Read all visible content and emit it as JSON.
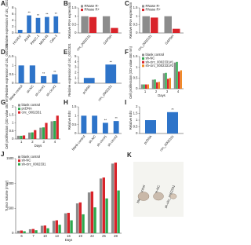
{
  "chart_data": [
    {
      "type": "bar",
      "title": "A",
      "ylabel": "Relative expression of circ_0002331",
      "categories": [
        "HUVEC",
        "A549",
        "PANC-1",
        "MKN-45",
        "Calu-3"
      ],
      "values": [
        1,
        5.6,
        4.8,
        5.1,
        5.3
      ],
      "color": "#2e74c9",
      "significance": [
        null,
        "**",
        "**",
        "**",
        "**"
      ],
      "ylim": [
        0,
        8
      ],
      "yticks": [
        0,
        2,
        4,
        6,
        8
      ]
    },
    {
      "type": "bar",
      "title": "B",
      "ylabel": "Relative RNA expression",
      "categories": [
        "circ_0002331",
        "GAPDH"
      ],
      "series": [
        {
          "name": "RNase R-",
          "color": "#8c8c8c",
          "values": [
            1,
            1
          ]
        },
        {
          "name": "RNase R+",
          "color": "#d9232a",
          "values": [
            0.95,
            0.3
          ]
        }
      ],
      "ylim": [
        0,
        1.5
      ],
      "yticks": [
        0,
        0.5,
        1,
        1.5
      ]
    },
    {
      "type": "bar",
      "title": "C",
      "ylabel": "Relative RNA expression",
      "categories": [
        "circ_0002331",
        "GAPDH"
      ],
      "series": [
        {
          "name": "RNase R-",
          "color": "#8c8c8c",
          "values": [
            1,
            1
          ]
        },
        {
          "name": "RNase R+",
          "color": "#d9232a",
          "values": [
            0.92,
            0.25
          ]
        }
      ],
      "ylim": [
        0,
        1.5
      ],
      "yticks": [
        0,
        0.5,
        1,
        1.5
      ]
    },
    {
      "type": "bar",
      "title": "D",
      "ylabel": "Relative expression of circ_0002331",
      "categories": [
        "blank control",
        "sh-NC",
        "sh-circ#1",
        "sh-circ#2"
      ],
      "values": [
        1,
        1,
        0.4,
        0.5
      ],
      "color": "#2e74c9",
      "significance": [
        null,
        null,
        "**",
        "**"
      ],
      "ylim": [
        0,
        1.5
      ],
      "yticks": [
        0,
        0.5,
        1,
        1.5
      ]
    },
    {
      "type": "bar",
      "title": "E",
      "ylabel": "Relative expression of circ_0002331",
      "categories": [
        "pcDNA",
        "circ_0002331"
      ],
      "values": [
        1,
        3.5
      ],
      "color": "#2e74c9",
      "significance": [
        null,
        "**"
      ],
      "ylim": [
        0,
        5
      ],
      "yticks": [
        0,
        1,
        2,
        3,
        4,
        5
      ]
    },
    {
      "type": "bar",
      "title": "F",
      "ylabel": "Cell proliferation (OD value 450 nm)",
      "xlabel": "Days",
      "categories": [
        "1",
        "2",
        "3",
        "4"
      ],
      "series": [
        {
          "name": "blank control",
          "color": "#8c8c8c",
          "values": [
            0.2,
            0.42,
            0.72,
            1.22
          ]
        },
        {
          "name": "sh-NC",
          "color": "#2fa84f",
          "values": [
            0.2,
            0.43,
            0.74,
            1.25
          ]
        },
        {
          "name": "sh-circ_0002331#1",
          "color": "#d9232a",
          "values": [
            0.2,
            0.3,
            0.46,
            0.8
          ]
        },
        {
          "name": "sh-circ_0002331#2",
          "color": "#f08a24",
          "values": [
            0.2,
            0.32,
            0.5,
            0.86
          ]
        }
      ],
      "ylim": [
        0,
        1.5
      ],
      "yticks": [
        0,
        0.5,
        1,
        1.5
      ]
    },
    {
      "type": "bar",
      "title": "G",
      "ylabel": "Cell proliferation (OD value 450 nm)",
      "xlabel": "Days",
      "categories": [
        "1",
        "2",
        "3",
        "4"
      ],
      "series": [
        {
          "name": "blank control",
          "color": "#8c8c8c",
          "values": [
            0.2,
            0.4,
            0.7,
            1.1
          ]
        },
        {
          "name": "pcDNA",
          "color": "#2fa84f",
          "values": [
            0.2,
            0.41,
            0.72,
            1.12
          ]
        },
        {
          "name": "circ_0002331",
          "color": "#d9232a",
          "values": [
            0.22,
            0.55,
            1.0,
            1.45
          ]
        }
      ],
      "ylim": [
        0,
        2
      ],
      "yticks": [
        0,
        0.5,
        1,
        1.5,
        2
      ]
    },
    {
      "type": "bar",
      "title": "H",
      "ylabel": "Relative EdU",
      "categories": [
        "blank control",
        "sh-NC",
        "sh-circ#1",
        "sh-circ#2"
      ],
      "values": [
        1,
        1,
        0.6,
        0.7
      ],
      "color": "#2e74c9",
      "significance": [
        null,
        null,
        "**",
        "**"
      ],
      "ylim": [
        0,
        1.5
      ],
      "yticks": [
        0,
        0.5,
        1,
        1.5
      ]
    },
    {
      "type": "bar",
      "title": "I",
      "ylabel": "Relative EdU",
      "categories": [
        "pcDNA",
        "circ_0002331"
      ],
      "values": [
        1,
        1.6
      ],
      "color": "#2e74c9",
      "significance": [
        null,
        "**"
      ],
      "ylim": [
        0,
        2
      ],
      "yticks": [
        0,
        0.5,
        1,
        1.5,
        2
      ]
    },
    {
      "type": "bar",
      "title": "J",
      "ylabel": "Tumor volume (mm³)",
      "xlabel": "Days",
      "categories": [
        "6",
        "7",
        "10",
        "13",
        "16",
        "19",
        "22",
        "25",
        "28"
      ],
      "series": [
        {
          "name": "blank control",
          "color": "#8c8c8c",
          "values": [
            50,
            80,
            150,
            250,
            400,
            600,
            820,
            1100,
            1400
          ]
        },
        {
          "name": "sh-NC",
          "color": "#d9232a",
          "values": [
            55,
            85,
            155,
            260,
            410,
            620,
            840,
            1120,
            1420
          ]
        },
        {
          "name": "sh-circ_0002331",
          "color": "#2fa84f",
          "values": [
            40,
            60,
            100,
            170,
            260,
            380,
            520,
            700,
            860
          ]
        }
      ],
      "ylim": [
        0,
        1500
      ],
      "yticks": [
        0,
        500,
        1000,
        1500
      ]
    }
  ],
  "photo": {
    "title": "K",
    "labels": [
      "blank control",
      "sh-NC",
      "sh-circ_0002331"
    ]
  }
}
